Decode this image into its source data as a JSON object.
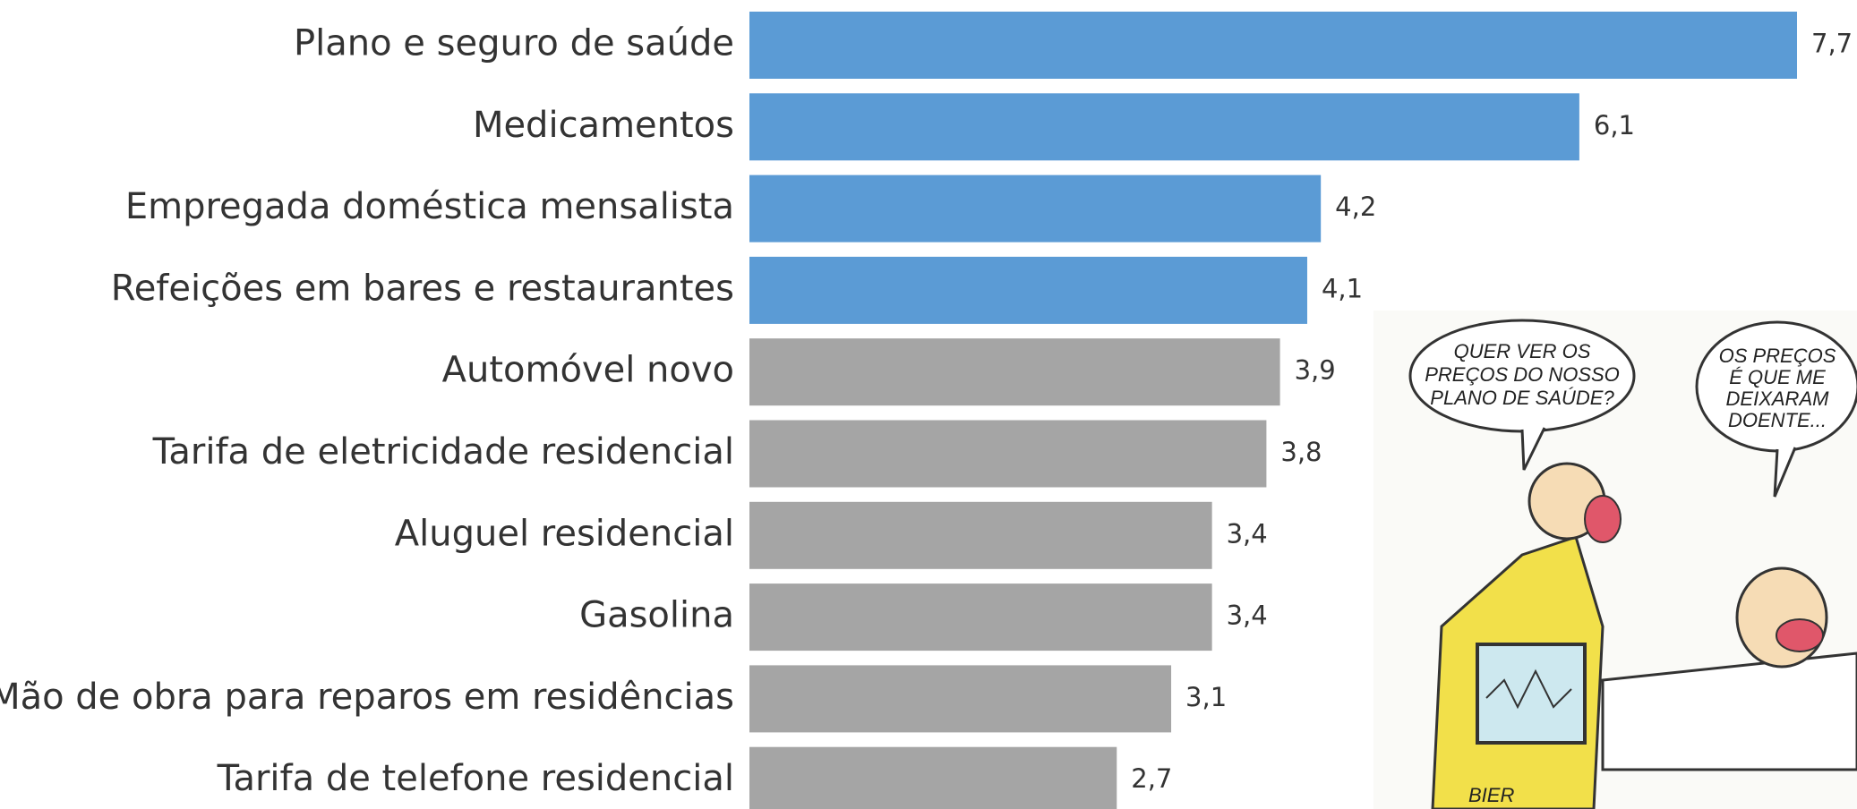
{
  "chart_data": {
    "type": "hbar",
    "categories": [
      "Plano e seguro de saúde",
      "Medicamentos",
      "Empregada doméstica mensalista",
      "Refeições em bares e restaurantes",
      "Automóvel novo",
      "Tarifa de eletricidade residencial",
      "Aluguel residencial",
      "Gasolina",
      "Mão de obra para reparos em residências",
      "Tarifa de telefone residencial"
    ],
    "values": [
      7.7,
      6.1,
      4.2,
      4.1,
      3.9,
      3.8,
      3.4,
      3.4,
      3.1,
      2.7
    ],
    "value_labels": [
      "7,7",
      "6,1",
      "4,2",
      "4,1",
      "3,9",
      "3,8",
      "3,4",
      "3,4",
      "3,1",
      "2,7"
    ],
    "colors": [
      "#5b9bd5",
      "#5b9bd5",
      "#5b9bd5",
      "#5b9bd5",
      "#a5a5a5",
      "#a5a5a5",
      "#a5a5a5",
      "#a5a5a5",
      "#a5a5a5",
      "#a5a5a5"
    ]
  },
  "illustration": {
    "doctor_speech": [
      "QUER VER OS",
      "PREÇOS DO NOSSO",
      "PLANO DE SAÚDE?"
    ],
    "patient_speech": [
      "OS PREÇOS",
      "É QUE ME",
      "DEIXARAM",
      "DOENTE..."
    ],
    "signature": "BIER"
  }
}
